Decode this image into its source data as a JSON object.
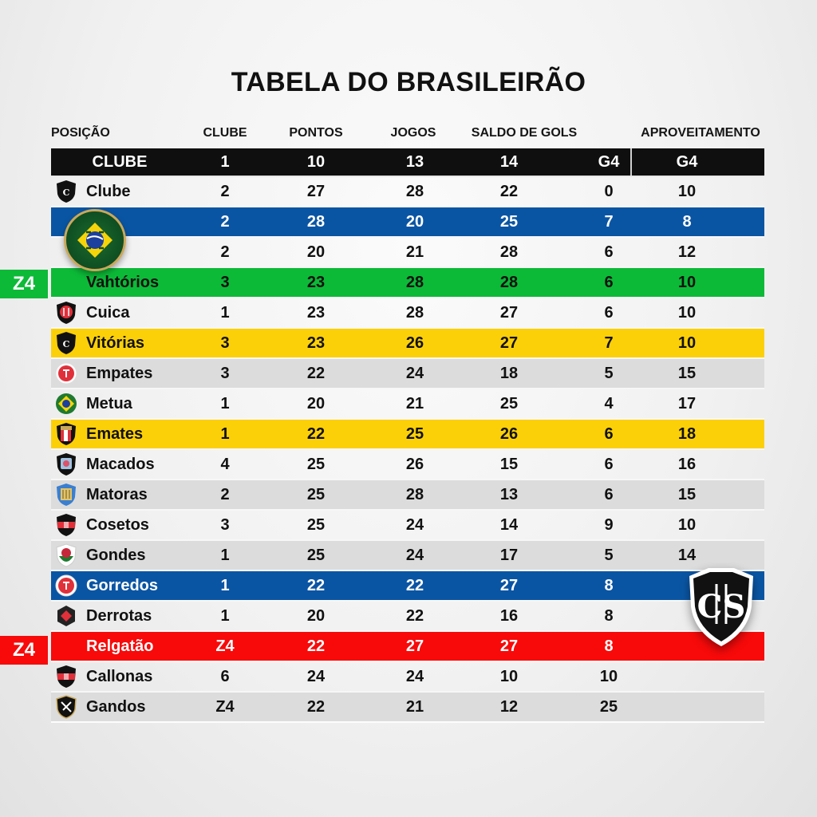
{
  "title": "TABELA DO BRASILEIRÃO",
  "column_headers": {
    "posicao": "POSIÇÃO",
    "clube": "CLUBE",
    "pontos": "PONTOS",
    "jogos": "JOGOS",
    "saldo": "SALDO DE GOLS",
    "aproveitamento": "APROVEITAMENTO"
  },
  "header_row": {
    "club": "CLUBE",
    "c1": "1",
    "c2": "10",
    "c3": "13",
    "c4": "14",
    "c5": "G4",
    "c6": "G4"
  },
  "zone_labels": {
    "green": "Z4",
    "red": "Z4"
  },
  "colors": {
    "header_bg": "#0f0f0f",
    "blue": "#0a55a3",
    "green": "#0cba37",
    "yellow": "#fcd008",
    "red": "#f80a0a",
    "grey": "#dcdcdc"
  },
  "rows": [
    {
      "club": "Clube",
      "crest": "black-shield-crest",
      "style": "plain",
      "c1": "2",
      "c2": "27",
      "c3": "28",
      "c4": "22",
      "c5": "0",
      "c6": "10"
    },
    {
      "club": "",
      "crest": "brazil-medal-crest",
      "style": "blue",
      "c1": "2",
      "c2": "28",
      "c3": "20",
      "c4": "25",
      "c5": "7",
      "c6": "8"
    },
    {
      "club": "",
      "crest": "",
      "style": "plain",
      "c1": "2",
      "c2": "20",
      "c3": "21",
      "c4": "28",
      "c5": "6",
      "c6": "12"
    },
    {
      "club": "Vahtórios",
      "crest": "",
      "style": "green",
      "c1": "3",
      "c2": "23",
      "c3": "28",
      "c4": "28",
      "c5": "6",
      "c6": "10"
    },
    {
      "club": "Cuica",
      "crest": "red-black-shield-crest",
      "style": "plain",
      "c1": "1",
      "c2": "23",
      "c3": "28",
      "c4": "27",
      "c5": "6",
      "c6": "10"
    },
    {
      "club": "Vitórias",
      "crest": "black-shield-crest",
      "style": "yellow",
      "c1": "3",
      "c2": "23",
      "c3": "26",
      "c4": "27",
      "c5": "7",
      "c6": "10"
    },
    {
      "club": "Empates",
      "crest": "red-circle-crest",
      "style": "grey",
      "c1": "3",
      "c2": "22",
      "c3": "24",
      "c4": "18",
      "c5": "5",
      "c6": "15"
    },
    {
      "club": "Metua",
      "crest": "brazil-circle-crest",
      "style": "plain",
      "c1": "1",
      "c2": "20",
      "c3": "21",
      "c4": "25",
      "c5": "4",
      "c6": "17"
    },
    {
      "club": "Emates",
      "crest": "red-white-shield-crest",
      "style": "yellow",
      "c1": "1",
      "c2": "22",
      "c3": "25",
      "c4": "26",
      "c5": "6",
      "c6": "18"
    },
    {
      "club": "Macados",
      "crest": "black-pink-shield-crest",
      "style": "plain",
      "c1": "4",
      "c2": "25",
      "c3": "26",
      "c4": "15",
      "c5": "6",
      "c6": "16"
    },
    {
      "club": "Matoras",
      "crest": "blue-gold-shield-crest",
      "style": "grey",
      "c1": "2",
      "c2": "25",
      "c3": "28",
      "c4": "13",
      "c5": "6",
      "c6": "15"
    },
    {
      "club": "Cosetos",
      "crest": "black-red-shield-crest",
      "style": "plain",
      "c1": "3",
      "c2": "25",
      "c3": "24",
      "c4": "14",
      "c5": "9",
      "c6": "10"
    },
    {
      "club": "Gondes",
      "crest": "green-red-shield-crest",
      "style": "grey",
      "c1": "1",
      "c2": "25",
      "c3": "24",
      "c4": "17",
      "c5": "5",
      "c6": "14"
    },
    {
      "club": "Gorredos",
      "crest": "red-circle-crest",
      "style": "blue",
      "c1": "1",
      "c2": "22",
      "c3": "22",
      "c4": "27",
      "c5": "8",
      "c6": ""
    },
    {
      "club": "Derrotas",
      "crest": "black-red-diamond-crest",
      "style": "plain",
      "c1": "1",
      "c2": "20",
      "c3": "22",
      "c4": "16",
      "c5": "8",
      "c6": ""
    },
    {
      "club": "Relgatão",
      "crest": "",
      "style": "red",
      "c1": "Z4",
      "c2": "22",
      "c3": "27",
      "c4": "27",
      "c5": "8",
      "c6": ""
    },
    {
      "club": "Callonas",
      "crest": "black-red-shield-crest",
      "style": "plain",
      "c1": "6",
      "c2": "24",
      "c3": "24",
      "c4": "10",
      "c5": "10",
      "c6": ""
    },
    {
      "club": "Gandos",
      "crest": "black-gold-shield-crest",
      "style": "grey",
      "c1": "Z4",
      "c2": "22",
      "c3": "21",
      "c4": "12",
      "c5": "25",
      "c6": ""
    }
  ],
  "overlay_crest": "black-white-monogram-shield-crest"
}
